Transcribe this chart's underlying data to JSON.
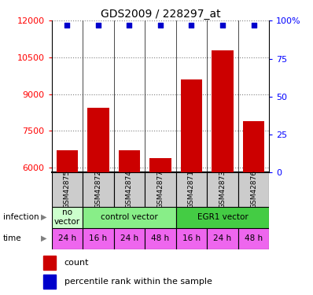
{
  "title": "GDS2009 / 228297_at",
  "samples": [
    "GSM42875",
    "GSM42872",
    "GSM42874",
    "GSM42877",
    "GSM42871",
    "GSM42873",
    "GSM42876"
  ],
  "counts": [
    6700,
    8450,
    6700,
    6400,
    9600,
    10800,
    7900
  ],
  "ylim_left": [
    5800,
    12000
  ],
  "yticks_left": [
    6000,
    7500,
    9000,
    10500,
    12000
  ],
  "yticks_right": [
    0,
    25,
    50,
    75,
    100
  ],
  "ytick_labels_right": [
    "0",
    "25",
    "50",
    "75",
    "100%"
  ],
  "bar_color": "#cc0000",
  "percentile_color": "#0000cc",
  "infection_groups": [
    {
      "label": "no\nvector",
      "start": 0,
      "end": 1,
      "color": "#ccffcc"
    },
    {
      "label": "control vector",
      "start": 1,
      "end": 4,
      "color": "#88ee88"
    },
    {
      "label": "EGR1 vector",
      "start": 4,
      "end": 7,
      "color": "#44cc44"
    }
  ],
  "time_labels": [
    "24 h",
    "16 h",
    "24 h",
    "48 h",
    "16 h",
    "24 h",
    "48 h"
  ],
  "time_color": "#ee66ee",
  "sample_box_color": "#cccccc",
  "legend_count_label": "count",
  "legend_pct_label": "percentile rank within the sample",
  "infection_label": "infection",
  "time_label": "time"
}
